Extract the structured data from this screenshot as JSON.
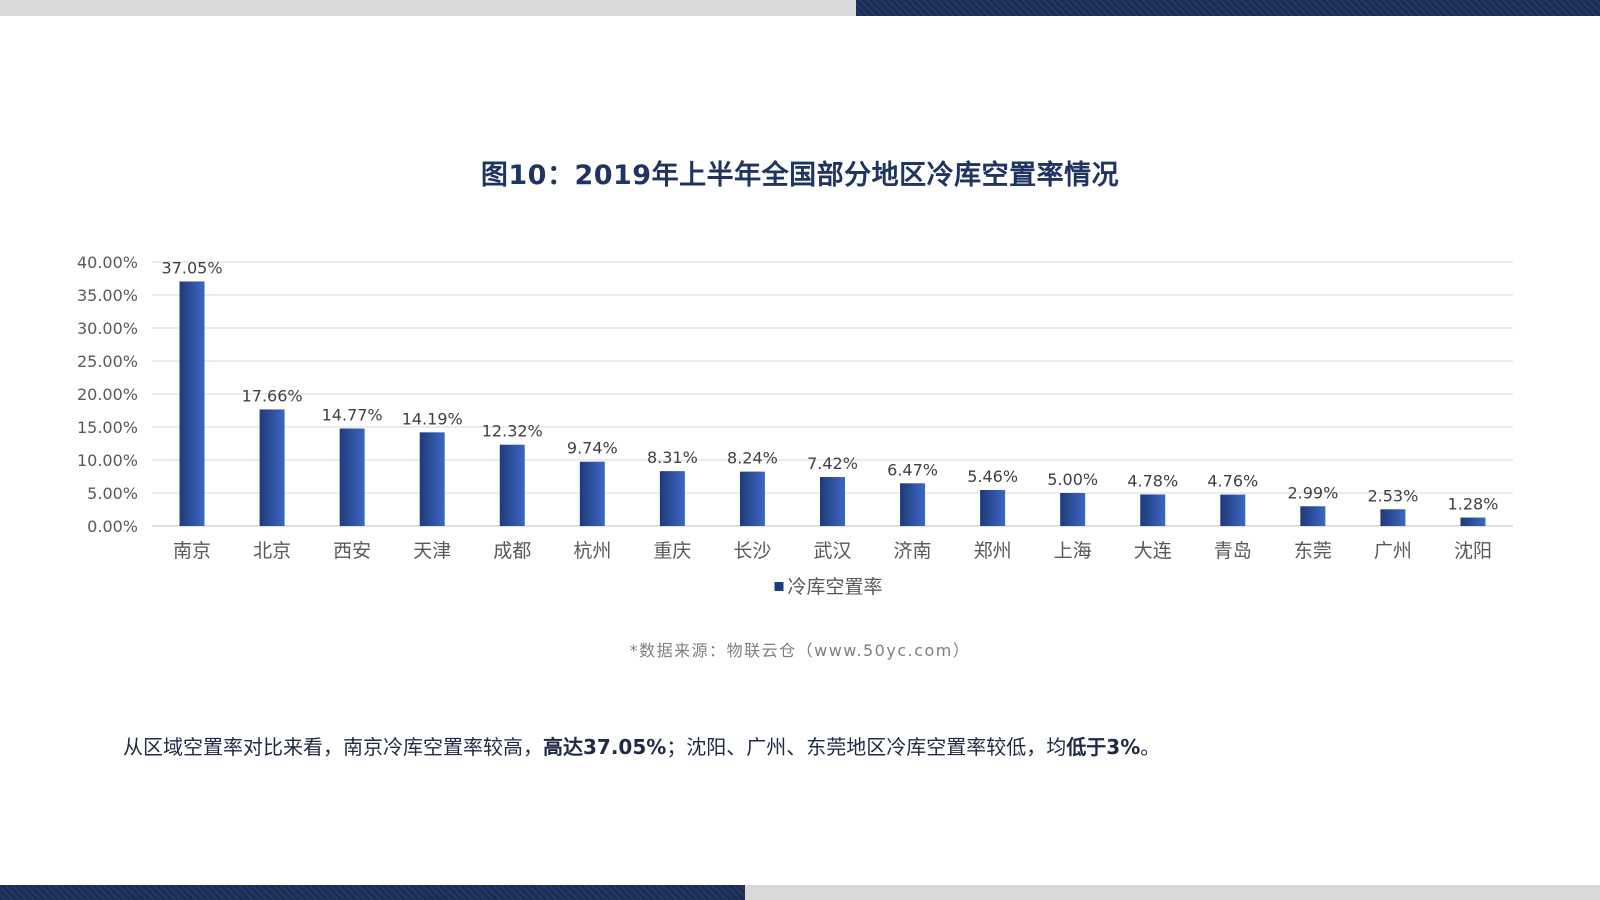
{
  "page": {
    "title": "图10：2019年上半年全国部分地区冷库空置率情况",
    "source": "*数据来源：物联云仓（www.50yc.com）",
    "summary": {
      "part1": "从区域空置率对比来看，南京冷库空置率较高，",
      "bold1": "高达37.05%",
      "part2": "；沈阳、广州、东莞地区冷库空置率较低，均",
      "bold2": "低于3%",
      "part3": "。"
    },
    "colors": {
      "bar_dark": "#1f3a7a",
      "bar_light": "#3b68c4",
      "accent_navy": "#1b2b52",
      "grey_band": "#d9d9d9"
    }
  },
  "chart_data": {
    "type": "bar",
    "title": "图10：2019年上半年全国部分地区冷库空置率情况",
    "categories": [
      "南京",
      "北京",
      "西安",
      "天津",
      "成都",
      "杭州",
      "重庆",
      "长沙",
      "武汉",
      "济南",
      "郑州",
      "上海",
      "大连",
      "青岛",
      "东莞",
      "广州",
      "沈阳"
    ],
    "series": [
      {
        "name": "冷库空置率",
        "values": [
          37.05,
          17.66,
          14.77,
          14.19,
          12.32,
          9.74,
          8.31,
          8.24,
          7.42,
          6.47,
          5.46,
          5.0,
          4.78,
          4.76,
          2.99,
          2.53,
          1.28
        ],
        "labels": [
          "37.05%",
          "17.66%",
          "14.77%",
          "14.19%",
          "12.32%",
          "9.74%",
          "8.31%",
          "8.24%",
          "7.42%",
          "6.47%",
          "5.46%",
          "5.00%",
          "4.78%",
          "4.76%",
          "2.99%",
          "2.53%",
          "1.28%"
        ]
      }
    ],
    "y_ticks": [
      "0.00%",
      "5.00%",
      "10.00%",
      "15.00%",
      "20.00%",
      "25.00%",
      "30.00%",
      "35.00%",
      "40.00%"
    ],
    "ylim": [
      0,
      40
    ],
    "grid": true,
    "legend_position": "bottom-center"
  }
}
